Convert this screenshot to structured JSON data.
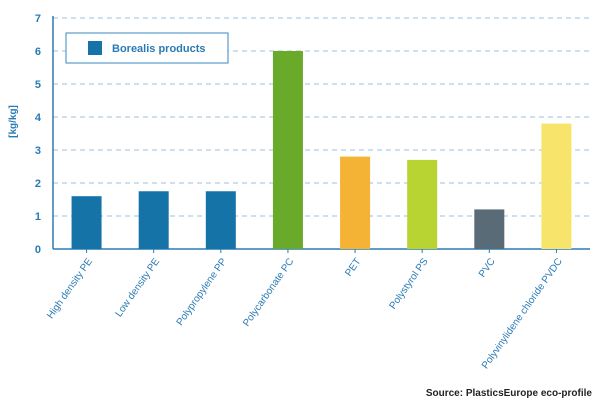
{
  "chart_data": {
    "type": "bar",
    "title": "",
    "xlabel": "",
    "ylabel": "[kg/kg]",
    "ylim": [
      0,
      7
    ],
    "yticks": [
      0,
      1,
      2,
      3,
      4,
      5,
      6,
      7
    ],
    "grid": "horizontal-dashed",
    "categories": [
      "High density PE",
      "Low density PE",
      "Polypropylene PP",
      "Polycarbonate PC",
      "PET",
      "Polystyrol PS",
      "PVC",
      "Polyvinylidene chloride PVDC"
    ],
    "values": [
      1.6,
      1.75,
      1.75,
      6.0,
      2.8,
      2.7,
      1.2,
      3.8
    ],
    "colors": [
      "#1673a8",
      "#1673a8",
      "#1673a8",
      "#6aaa2a",
      "#f5b335",
      "#b8d432",
      "#5a6b78",
      "#f7e46a"
    ],
    "legend": {
      "position": "top-left",
      "entries": [
        {
          "label": "Borealis products",
          "color": "#1673a8"
        }
      ]
    },
    "axis_color": "#2a7bb5",
    "grid_color": "#9cc2de"
  },
  "source": "Source: PlasticsEurope eco-profile"
}
